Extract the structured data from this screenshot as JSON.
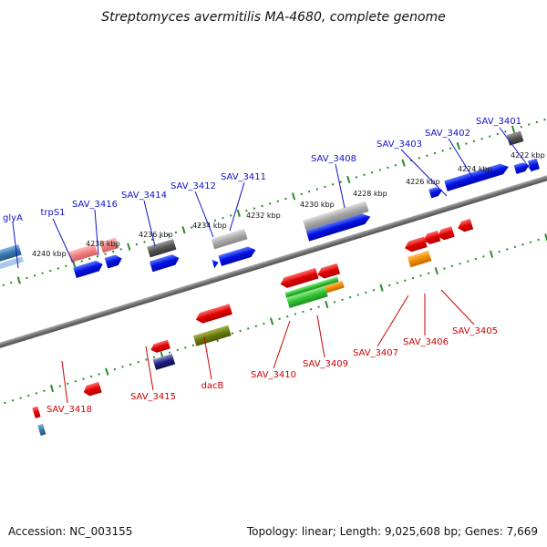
{
  "title": "Streptomyces avermitilis MA-4680, complete genome",
  "footer": {
    "accession": "Accession: NC_003155",
    "summary": "Topology: linear; Length: 9,025,608 bp; Genes: 7,669"
  },
  "colors": {
    "backbone": "#808080",
    "tick": "#2a8a2a",
    "plus_label": "#1010c8",
    "minus_label": "#cc0000",
    "callout_plus": "#1010c8",
    "callout_minus": "#cc0000"
  },
  "scale_labels": [
    "4222 kbp",
    "4224 kbp",
    "4226 kbp",
    "4228 kbp",
    "4230 kbp",
    "4232 kbp",
    "4234 kbp",
    "4236 kbp",
    "4238 kbp",
    "4240 kbp"
  ],
  "plus_strand_labels": [
    "SAV_3401",
    "SAV_3402",
    "SAV_3403",
    "SAV_3408",
    "SAV_3411",
    "SAV_3412",
    "SAV_3414",
    "SAV_3416",
    "trpS1",
    "glyA"
  ],
  "minus_strand_labels": [
    "SAV_3405",
    "SAV_3406",
    "SAV_3407",
    "SAV_3409",
    "SAV_3410",
    "dacB",
    "SAV_3415",
    "SAV_3418"
  ]
}
